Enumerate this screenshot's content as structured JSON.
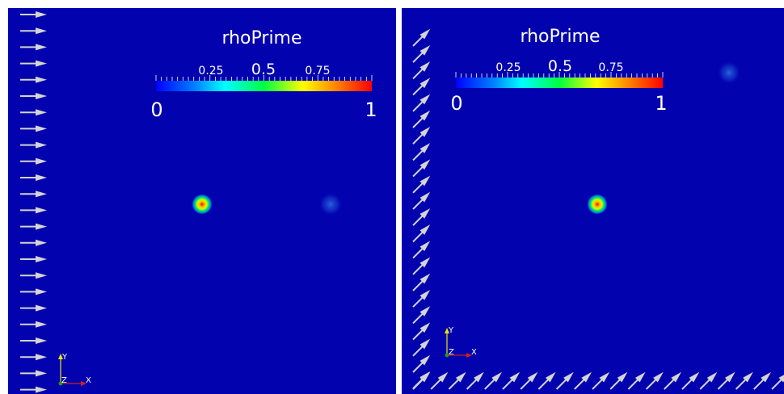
{
  "colors": {
    "background": "#0202ae",
    "arrow": "#d4d4d4",
    "axis_x": "#cc2222",
    "axis_y": "#e8e800",
    "axis_z": "#1a9e1a"
  },
  "icons": {
    "glyph": "arrow-icon",
    "orientation": "axes-triad-icon"
  },
  "views": [
    {
      "field_label": "rhoPrime",
      "colorbar": {
        "min_label": "0",
        "max_label": "1",
        "ticks": [
          "0.25",
          "0.5",
          "0.75"
        ]
      },
      "axes": {
        "x": "X",
        "y": "Y",
        "z": "Z"
      },
      "arrow_direction": "horizontal"
    },
    {
      "field_label": "rhoPrime",
      "colorbar": {
        "min_label": "0",
        "max_label": "1",
        "ticks": [
          "0.25",
          "0.5",
          "0.75"
        ]
      },
      "axes": {
        "x": "X",
        "y": "Y",
        "z": "Z"
      },
      "arrow_direction": "diagonal"
    }
  ]
}
